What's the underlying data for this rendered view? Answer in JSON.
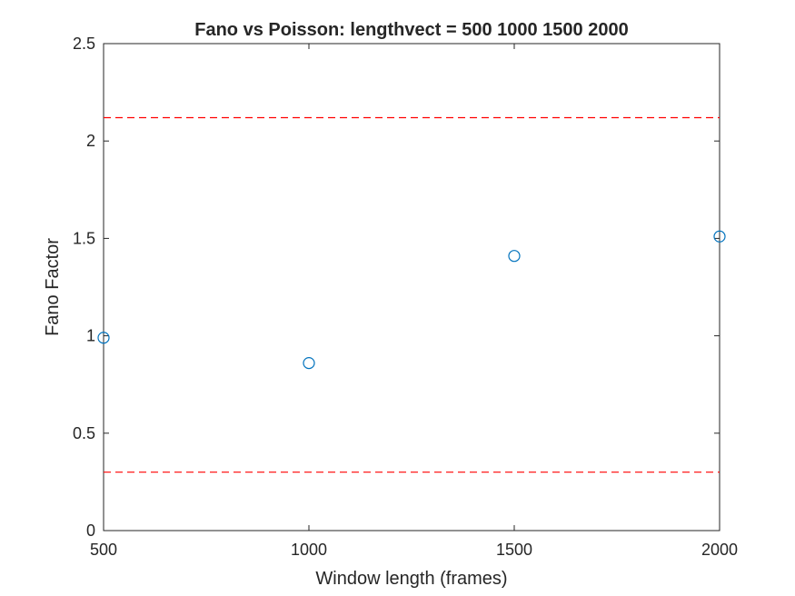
{
  "chart_data": {
    "type": "scatter",
    "title": "Fano vs Poisson: lengthvect = 500  1000  1500  2000",
    "xlabel": "Window length (frames)",
    "ylabel": "Fano Factor",
    "xlim": [
      500,
      2000
    ],
    "ylim": [
      0,
      2.5
    ],
    "xticks": [
      500,
      1000,
      1500,
      2000
    ],
    "xtick_labels": [
      "500",
      "1000",
      "1500",
      "2000"
    ],
    "yticks": [
      0,
      0.5,
      1,
      1.5,
      2,
      2.5
    ],
    "ytick_labels": [
      "0",
      "0.5",
      "1",
      "1.5",
      "2",
      "2.5"
    ],
    "grid": false,
    "box": true,
    "series": [
      {
        "marker": "circle",
        "color": "#0072BD",
        "x": [
          500,
          1000,
          1500,
          2000
        ],
        "y": [
          0.99,
          0.86,
          1.41,
          1.51
        ]
      }
    ],
    "reference_lines": [
      {
        "orientation": "horizontal",
        "style": "dashed",
        "color": "#FF0000",
        "y": 2.12
      },
      {
        "orientation": "horizontal",
        "style": "dashed",
        "color": "#FF0000",
        "y": 0.3
      }
    ]
  }
}
